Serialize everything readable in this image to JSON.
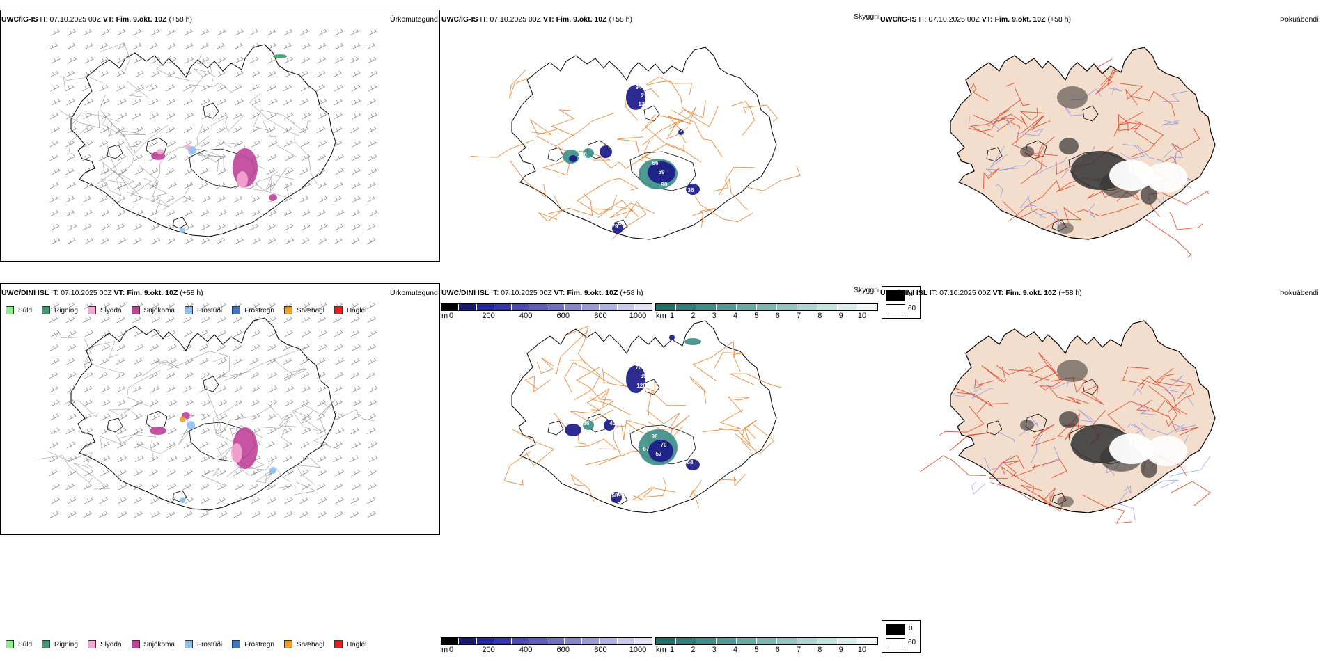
{
  "rows": [
    {
      "model": "UWC/IG-IS",
      "it_label": "IT:",
      "it_value": "07.10.2025 00Z",
      "vt_label": "VT:",
      "vt_value": "Fim. 9.okt. 10Z",
      "lead": "(+58 h)",
      "precip_values": [],
      "vis_labels": [
        "94",
        "21",
        "13",
        "29",
        "66",
        "45",
        "130",
        "96",
        "66",
        "59",
        "98",
        "36",
        "79",
        "47"
      ]
    },
    {
      "model": "UWC/DINI ISL",
      "it_label": "IT:",
      "it_value": "07.10.2025 00Z",
      "vt_label": "VT:",
      "vt_value": "Fim. 9.okt. 10Z",
      "lead": "(+58 h)",
      "precip_values": [],
      "vis_labels": [
        "2",
        "48",
        "76",
        "95",
        "126",
        "86",
        "43",
        "96",
        "70",
        "67",
        "57",
        "68",
        "46",
        "58",
        "65"
      ]
    }
  ],
  "panel_titles": {
    "precip_type": "Úrkomutegund",
    "visibility": "Skyggni",
    "fog": "Þokuábendi"
  },
  "precip_legend": [
    {
      "label": "Súld",
      "color": "#90ee90"
    },
    {
      "label": "Rigning",
      "color": "#3c9a6e"
    },
    {
      "label": "Slydda",
      "color": "#f4a6d0"
    },
    {
      "label": "Snjókoma",
      "color": "#c0439a"
    },
    {
      "label": "Frostúði",
      "color": "#8ec0f0"
    },
    {
      "label": "Frostregn",
      "color": "#3a78c8"
    },
    {
      "label": "Snæhagl",
      "color": "#f0a020"
    },
    {
      "label": "Haglél",
      "color": "#e82020"
    }
  ],
  "cloudbase_bar": {
    "unit": "m",
    "ticks": [
      "0",
      "200",
      "400",
      "600",
      "800",
      "1000"
    ],
    "colors": [
      "#000000",
      "#1a1a6e",
      "#25259a",
      "#3535a8",
      "#4a4ab0",
      "#5e5eb8",
      "#7070c0",
      "#8585c8",
      "#9a9ad0",
      "#b0b0dc",
      "#c8c8e8",
      "#e0e0f2"
    ]
  },
  "visibility_bar": {
    "unit": "km",
    "ticks": [
      "1",
      "2",
      "3",
      "4",
      "5",
      "6",
      "7",
      "8",
      "9",
      "10"
    ],
    "colors": [
      "#1e7068",
      "#2d8078",
      "#3e8e86",
      "#509c94",
      "#66aaa2",
      "#7cb8b0",
      "#94c6c0",
      "#acd4ce",
      "#c4e2dc",
      "#dcefec",
      "#f2f8f7"
    ]
  },
  "fog_legend": {
    "values": [
      "0",
      "60"
    ]
  },
  "colors": {
    "land": "#f3ddcc",
    "road_orange": "#e5771e",
    "road_red": "#dd3a1a",
    "river": "#6f7fe8",
    "vis_dark": "#1a1a8a",
    "vis_teal": "#3e9088",
    "snow": "#c0439a"
  }
}
